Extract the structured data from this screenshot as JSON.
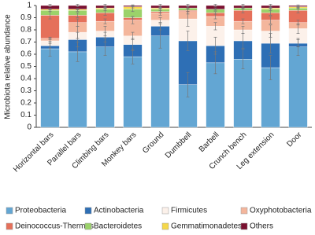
{
  "chart_data": {
    "type": "stacked_bar",
    "y_label": "Microbiota relative abundance",
    "categories": [
      "Horizontal bars",
      "Parallel bars",
      "Climbing bars",
      "Monkey bars",
      "Ground",
      "Dumbbell",
      "Barbell",
      "Crunch bench",
      "Leg extension",
      "Door"
    ],
    "ylim": [
      0,
      1
    ],
    "yticks": [
      0,
      0.1,
      0.2,
      0.3,
      0.4,
      0.5,
      0.6,
      0.7,
      0.8,
      0.9,
      1
    ],
    "grid": false,
    "legend": "bottom",
    "series": [
      {
        "name": "Proteobacteria",
        "color": "#63a6d3",
        "values": [
          0.645,
          0.62,
          0.66,
          0.58,
          0.75,
          0.35,
          0.53,
          0.56,
          0.49,
          0.66
        ],
        "errors": [
          0.06,
          0.08,
          0.07,
          0.06,
          0.1,
          0.1,
          0.09,
          0.08,
          0.1,
          0.07
        ]
      },
      {
        "name": "Actinobacteria",
        "color": "#2e6fb5",
        "values": [
          0.025,
          0.1,
          0.08,
          0.1,
          0.08,
          0.36,
          0.14,
          0.15,
          0.2,
          0.03
        ],
        "errors": [
          0.02,
          0.06,
          0.04,
          0.05,
          0.03,
          0.08,
          0.07,
          0.06,
          0.08,
          0.03
        ]
      },
      {
        "name": "Firmicutes",
        "color": "#fcf1ea",
        "values": [
          0.04,
          0.06,
          0.05,
          0.07,
          0.05,
          0.18,
          0.16,
          0.09,
          0.1,
          0.12
        ],
        "errors": [
          0.02,
          0.05,
          0.04,
          0.03,
          0.02,
          0.06,
          0.03,
          0.03,
          0.05,
          0.04
        ]
      },
      {
        "name": "Oxyphotobacteria",
        "color": "#f4b69c",
        "values": [
          0.02,
          0.08,
          0.08,
          0.13,
          0.06,
          0.06,
          0.08,
          0.07,
          0.09,
          0.05
        ],
        "errors": [
          0.01,
          0.03,
          0.02,
          0.03,
          0.02,
          0.02,
          0.02,
          0.02,
          0.03,
          0.02
        ]
      },
      {
        "name": "Deinococcus-Thermus",
        "color": "#e5705a",
        "values": [
          0.19,
          0.06,
          0.07,
          0.02,
          0.01,
          0.01,
          0.03,
          0.09,
          0.06,
          0.1
        ],
        "errors": [
          0.03,
          0.02,
          0.02,
          0.01,
          0.01,
          0.01,
          0.01,
          0.02,
          0.02,
          0.02
        ]
      },
      {
        "name": "Bacteroidetes",
        "color": "#9bd26a",
        "values": [
          0.04,
          0.04,
          0.03,
          0.07,
          0.02,
          0.02,
          0.03,
          0.02,
          0.03,
          0.02
        ],
        "errors": [
          0.01,
          0.01,
          0.01,
          0.02,
          0.01,
          0.01,
          0.01,
          0.01,
          0.01,
          0.01
        ]
      },
      {
        "name": "Gemmatimonadetes",
        "color": "#f5d84a",
        "values": [
          0.01,
          0.01,
          0.01,
          0.02,
          0.01,
          0,
          0,
          0,
          0.01,
          0.01
        ],
        "errors": [
          0.005,
          0.005,
          0.005,
          0.01,
          0.005,
          0,
          0,
          0,
          0.005,
          0.005
        ]
      },
      {
        "name": "Others",
        "color": "#7a1030",
        "values": [
          0.03,
          0.03,
          0.02,
          0.01,
          0.02,
          0.02,
          0.03,
          0.02,
          0.02,
          0.01
        ],
        "errors": [
          0.01,
          0.01,
          0.01,
          0.005,
          0.01,
          0.01,
          0.01,
          0.01,
          0.01,
          0.005
        ]
      }
    ]
  }
}
